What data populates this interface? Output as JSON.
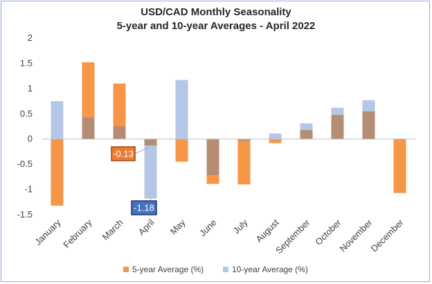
{
  "chart_data": {
    "type": "bar",
    "title": [
      "USD/CAD Monthly Seasonality",
      "5-year and 10-year Averages - April 2022"
    ],
    "categories": [
      "January",
      "February",
      "March",
      "April",
      "May",
      "June",
      "July",
      "August",
      "September",
      "October",
      "November",
      "December"
    ],
    "series": [
      {
        "name": "5-year Average (%)",
        "values": [
          -1.32,
          1.52,
          1.1,
          -0.13,
          -0.45,
          -0.89,
          -0.9,
          -0.08,
          0.18,
          0.48,
          0.55,
          -1.07
        ]
      },
      {
        "name": "10-year Average (%)",
        "values": [
          0.75,
          0.43,
          0.25,
          -1.18,
          1.17,
          -0.72,
          -0.04,
          0.11,
          0.31,
          0.62,
          0.77,
          -0.02
        ]
      }
    ],
    "ylim": [
      -1.5,
      2
    ],
    "yticks": [
      -1.5,
      -1,
      -0.5,
      0,
      0.5,
      1,
      1.5,
      2
    ],
    "ytick_labels": [
      "-1.5",
      "-1",
      "-0.5",
      "0",
      "0.5",
      "1",
      "1.5",
      "2"
    ],
    "annotations": [
      {
        "label": "-0.13",
        "category": "April",
        "series": "5-year Average (%)"
      },
      {
        "label": "-1.18",
        "category": "April",
        "series": "10-year Average (%)"
      }
    ],
    "legend": "bottom",
    "grid": false,
    "colors": {
      "five_year": "#f79646",
      "ten_year": "#b4c7e7",
      "overlap": "#b58c74",
      "callout_five": "#ed7d31",
      "callout_ten": "#4472c4"
    }
  }
}
